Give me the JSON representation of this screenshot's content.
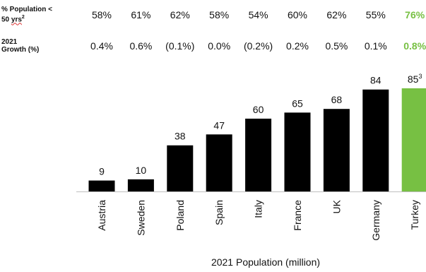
{
  "stats": {
    "pop_under_50": {
      "label_line1": "% Population <",
      "label_line2a": "50 ",
      "label_line2b": "yrs",
      "label_sup": "2",
      "values": [
        "58%",
        "61%",
        "62%",
        "58%",
        "54%",
        "60%",
        "62%",
        "55%",
        "76%"
      ]
    },
    "growth_2021": {
      "label_line1": "2021",
      "label_line2": "Growth (%)",
      "values": [
        "0.4%",
        "0.6%",
        "(0.1%)",
        "0.0%",
        "(0.2%)",
        "0.2%",
        "0.5%",
        "0.1%",
        "0.8%"
      ]
    }
  },
  "colors": {
    "bar": "#000000",
    "highlight": "#77c043",
    "axis": "#bfbfbf",
    "text": "#111111"
  },
  "chart_data": {
    "type": "bar",
    "categories": [
      "Austria",
      "Sweden",
      "Poland",
      "Spain",
      "Italy",
      "France",
      "UK",
      "Germany",
      "Turkey"
    ],
    "values": [
      9,
      10,
      38,
      47,
      60,
      65,
      68,
      84,
      85
    ],
    "value_labels": [
      "9",
      "10",
      "38",
      "47",
      "60",
      "65",
      "68",
      "84",
      "85"
    ],
    "highlight": "Turkey",
    "footnotes": {
      "Turkey": "3"
    },
    "xlabel": "2021 Population (million)",
    "ylabel": "",
    "title": "",
    "ylim": [
      0,
      85
    ],
    "grid": false,
    "legend": "none"
  }
}
